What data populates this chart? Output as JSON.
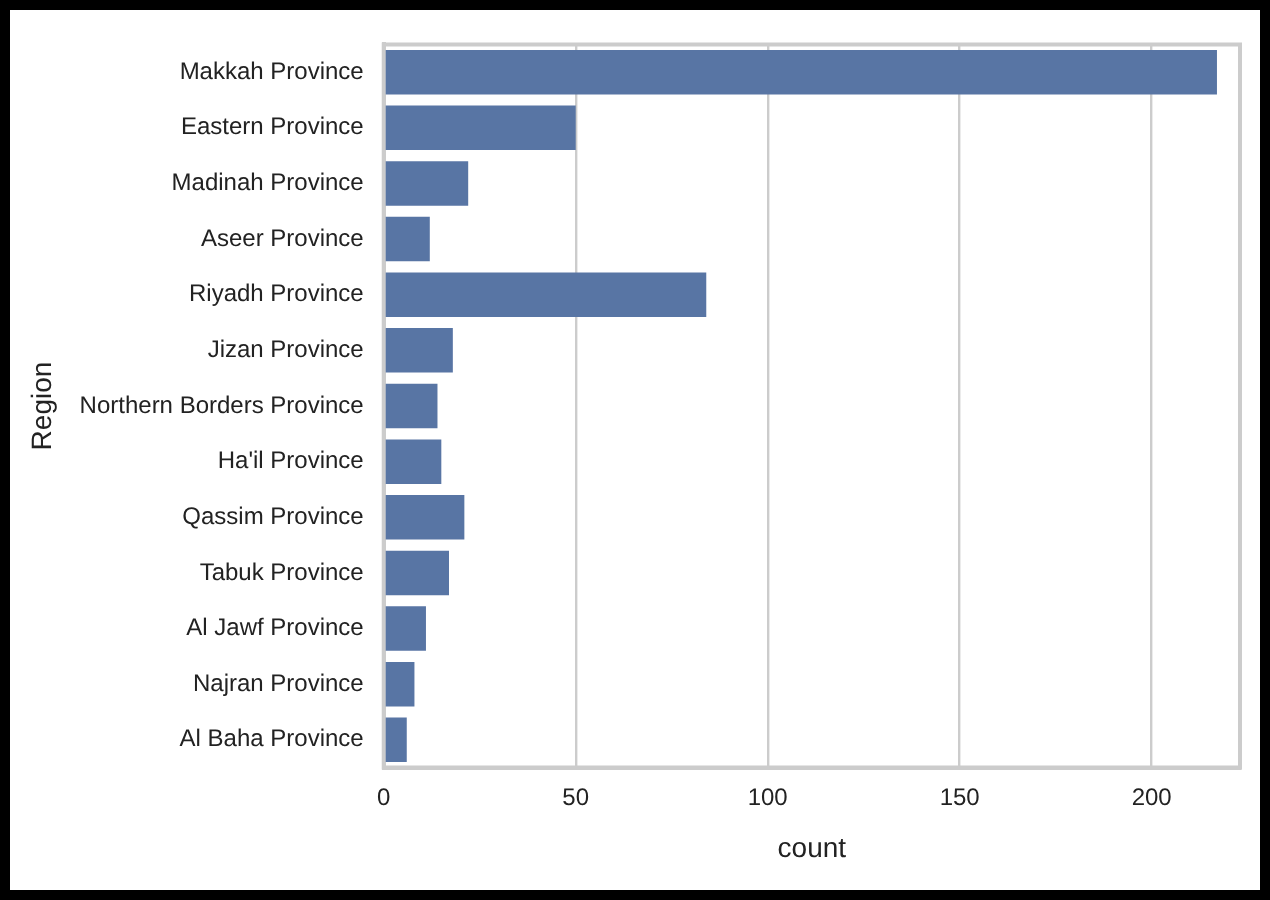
{
  "chart_data": {
    "type": "bar",
    "orientation": "horizontal",
    "xlabel": "count",
    "ylabel": "Region",
    "categories": [
      "Makkah Province",
      "Eastern Province",
      "Madinah Province",
      "Aseer Province",
      "Riyadh Province",
      "Jizan Province",
      "Northern Borders Province",
      "Ha'il Province",
      "Qassim Province",
      "Tabuk Province",
      "Al Jawf Province",
      "Najran Province",
      "Al Baha Province"
    ],
    "values": [
      217,
      50,
      22,
      12,
      84,
      18,
      14,
      15,
      21,
      17,
      11,
      8,
      6
    ],
    "color": "#5875a4",
    "xlim": [
      0,
      223
    ],
    "xticks": [
      0,
      50,
      100,
      150,
      200
    ],
    "grid": "x"
  }
}
